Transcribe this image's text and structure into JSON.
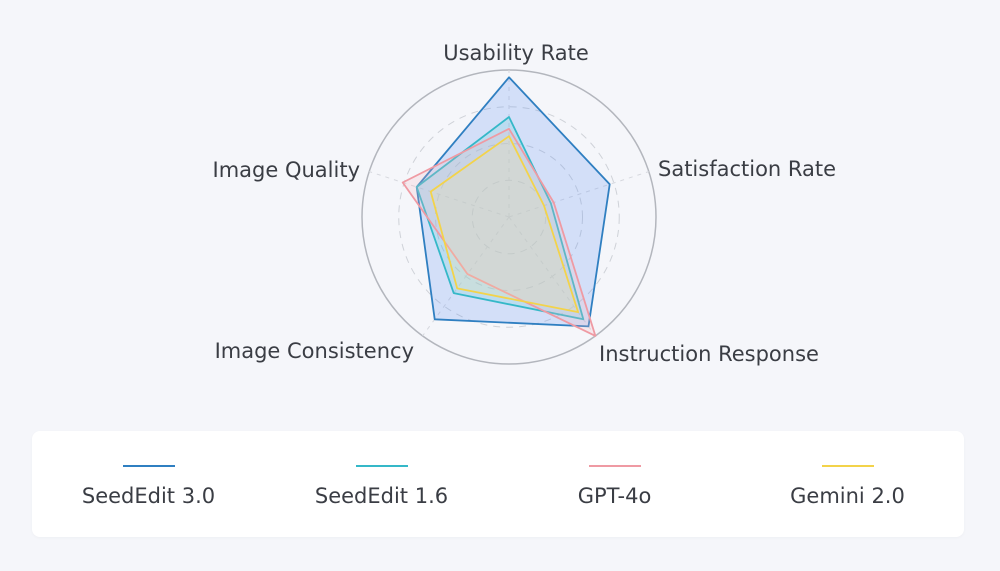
{
  "chart_data": {
    "type": "radar",
    "axes": [
      "Usability Rate",
      "Satisfaction Rate",
      "Instruction Response",
      "Image Consistency",
      "Image Quality"
    ],
    "range": [
      0,
      100
    ],
    "rings": 4,
    "series": [
      {
        "name": "SeedEdit 3.0",
        "color": "#2f7fc1",
        "fill": "#5b8ff0",
        "values": [
          95,
          72,
          92,
          86,
          66
        ]
      },
      {
        "name": "SeedEdit 1.6",
        "color": "#35b8c8",
        "fill": "#6ad0d8",
        "values": [
          68,
          30,
          86,
          64,
          66
        ]
      },
      {
        "name": "GPT-4o",
        "color": "#ef9aa3",
        "fill": "#f4b8bf",
        "values": [
          60,
          32,
          100,
          48,
          76
        ]
      },
      {
        "name": "Gemini 2.0",
        "color": "#f3d34a",
        "fill": "#f5e6a0",
        "values": [
          55,
          25,
          80,
          60,
          56
        ]
      }
    ]
  },
  "legend": {
    "items": [
      {
        "label": "SeedEdit 3.0",
        "color": "#2f7fc1"
      },
      {
        "label": "SeedEdit 1.6",
        "color": "#35b8c8"
      },
      {
        "label": "GPT-4o",
        "color": "#ef9aa3"
      },
      {
        "label": "Gemini 2.0",
        "color": "#f3d34a"
      }
    ]
  }
}
